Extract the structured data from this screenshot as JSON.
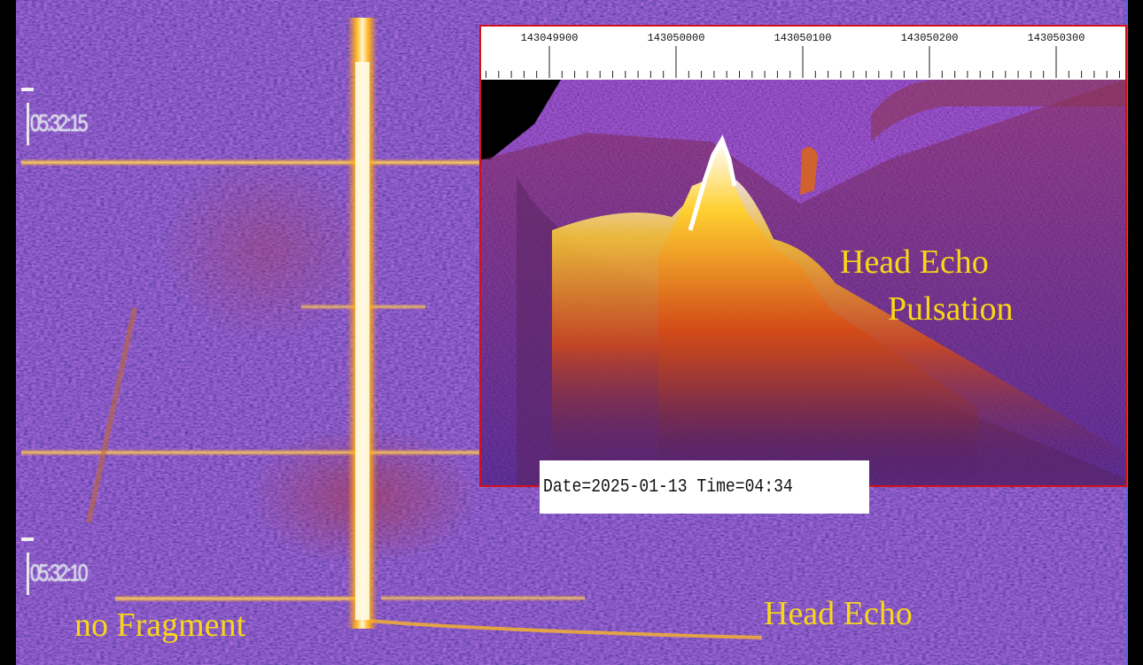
{
  "waterfall": {
    "times": [
      "05:32:15",
      "05:32:10"
    ],
    "colors": {
      "background": "#1c0e5c",
      "line": "#f4c030",
      "core": "#fff8d8"
    }
  },
  "inset": {
    "frequency_ticks": [
      "143049900",
      "143050000",
      "143050100",
      "143050200",
      "143050300"
    ],
    "date_time": "Date=2025-01-13 Time=04:34",
    "colors": {
      "frame": "#d0101c",
      "peak": "#ffffff"
    }
  },
  "annotations": {
    "head_echo_pulsation_line1": "Head Echo",
    "head_echo_pulsation_line2": "Pulsation",
    "no_fragment": "no Fragment",
    "head_echo": "Head Echo"
  }
}
